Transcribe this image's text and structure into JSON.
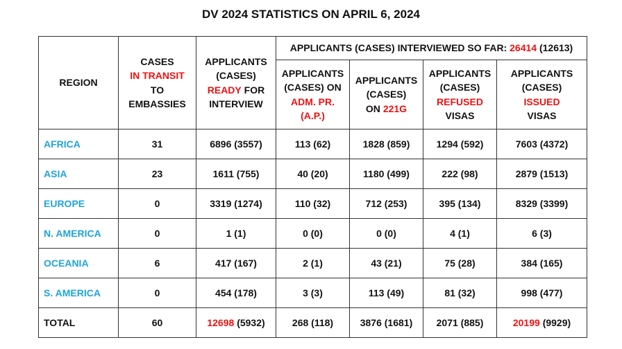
{
  "title": "DV 2024 STATISTICS ON APRIL 6, 2024",
  "table": {
    "columns": [
      [
        [
          {
            "text": "REGION"
          }
        ]
      ],
      [
        [
          {
            "text": "CASES"
          }
        ],
        [
          {
            "text": "IN TRANSIT",
            "color": "#ee1111"
          }
        ],
        [
          {
            "text": "TO"
          }
        ],
        [
          {
            "text": "EMBASSIES"
          }
        ]
      ],
      [
        [
          {
            "text": "APPLICANTS"
          }
        ],
        [
          {
            "text": "(CASES)"
          }
        ],
        [
          {
            "text": "READY",
            "color": "#ee1111"
          },
          {
            "text": "FOR"
          }
        ],
        [
          {
            "text": "INTERVIEW"
          }
        ]
      ]
    ],
    "group": [
      [
        {
          "text": "APPLICANTS (CASES) INTERVIEWED SO FAR:"
        },
        {
          "text": "26414",
          "color": "#ee1111"
        },
        {
          "text": "(12613)"
        }
      ]
    ],
    "subcolumns": [
      [
        [
          {
            "text": "APPLICANTS"
          }
        ],
        [
          {
            "text": "(CASES) ON"
          }
        ],
        [
          {
            "text": "ADM. PR.",
            "color": "#ee1111"
          }
        ],
        [
          {
            "text": "(A.P.)",
            "color": "#ee1111"
          }
        ]
      ],
      [
        [
          {
            "text": "APPLICANTS"
          }
        ],
        [
          {
            "text": "(CASES)"
          }
        ],
        [
          {
            "text": "ON"
          },
          {
            "text": "221G",
            "color": "#ee1111"
          }
        ]
      ],
      [
        [
          {
            "text": "APPLICANTS"
          }
        ],
        [
          {
            "text": "(CASES)"
          }
        ],
        [
          {
            "text": "REFUSED",
            "color": "#ee1111"
          }
        ],
        [
          {
            "text": "VISAS"
          }
        ]
      ],
      [
        [
          {
            "text": "APPLICANTS"
          }
        ],
        [
          {
            "text": "(CASES)"
          }
        ],
        [
          {
            "text": "ISSUED",
            "color": "#ee1111"
          }
        ],
        [
          {
            "text": "VISAS"
          }
        ]
      ]
    ],
    "rows": [
      [
        "AFRICA",
        "31",
        "6896 (3557)",
        "113 (62)",
        "1828 (859)",
        "1294 (592)",
        "7603 (4372)"
      ],
      [
        "ASIA",
        "23",
        "1611 (755)",
        "40 (20)",
        "1180 (499)",
        "222 (98)",
        "2879 (1513)"
      ],
      [
        "EUROPE",
        "0",
        "3319 (1274)",
        "110 (32)",
        "712 (253)",
        "395 (134)",
        "8329 (3399)"
      ],
      [
        "N. AMERICA",
        "0",
        "1 (1)",
        "0 (0)",
        "0 (0)",
        "4 (1)",
        "6 (3)"
      ],
      [
        "OCEANIA",
        "6",
        "417 (167)",
        "2 (1)",
        "43 (21)",
        "75 (28)",
        "384 (165)"
      ],
      [
        "S. AMERICA",
        "0",
        "454 (178)",
        "3 (3)",
        "113 (49)",
        "81 (32)",
        "998 (477)"
      ],
      [
        "TOTAL",
        "60",
        {
          "parts": [
            {
              "text": "12698",
              "color": "#ee1111"
            },
            {
              "text": "(5932)"
            }
          ]
        },
        "268 (118)",
        "3876 (1681)",
        "2071 (885)",
        {
          "parts": [
            {
              "text": "20199",
              "color": "#ee1111"
            },
            {
              "text": "(9929)"
            }
          ]
        }
      ]
    ]
  }
}
